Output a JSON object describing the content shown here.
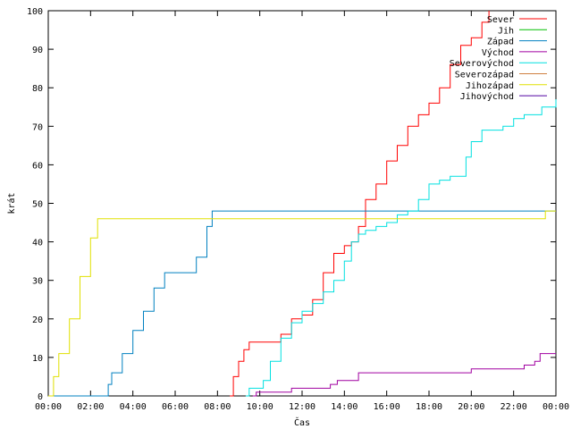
{
  "chart_data": {
    "type": "line",
    "xlabel": "Čas",
    "ylabel": "krát",
    "xlim": [
      "00:00",
      "24:00"
    ],
    "ylim": [
      0,
      100
    ],
    "x_ticks": [
      "00:00",
      "02:00",
      "04:00",
      "06:00",
      "08:00",
      "10:00",
      "12:00",
      "14:00",
      "16:00",
      "18:00",
      "20:00",
      "22:00",
      "00:00"
    ],
    "y_ticks": [
      0,
      10,
      20,
      30,
      40,
      50,
      60,
      70,
      80,
      90,
      100
    ],
    "grid": false,
    "legend_position": "top-right",
    "series": [
      {
        "name": "Sever",
        "color": "#ff0000",
        "points": [
          [
            "08:35",
            0
          ],
          [
            "08:45",
            5
          ],
          [
            "09:00",
            9
          ],
          [
            "09:15",
            12
          ],
          [
            "09:30",
            14
          ],
          [
            "10:00",
            14
          ],
          [
            "10:30",
            14
          ],
          [
            "11:00",
            16
          ],
          [
            "11:30",
            20
          ],
          [
            "12:00",
            21
          ],
          [
            "12:30",
            25
          ],
          [
            "13:00",
            32
          ],
          [
            "13:30",
            37
          ],
          [
            "14:00",
            39
          ],
          [
            "14:20",
            40
          ],
          [
            "14:40",
            44
          ],
          [
            "15:00",
            51
          ],
          [
            "15:30",
            55
          ],
          [
            "16:00",
            61
          ],
          [
            "16:30",
            65
          ],
          [
            "17:00",
            70
          ],
          [
            "17:30",
            73
          ],
          [
            "18:00",
            76
          ],
          [
            "18:30",
            80
          ],
          [
            "19:00",
            86
          ],
          [
            "19:30",
            91
          ],
          [
            "20:00",
            93
          ],
          [
            "20:30",
            97
          ],
          [
            "20:50",
            100
          ]
        ]
      },
      {
        "name": "Jih",
        "color": "#00c000",
        "points": []
      },
      {
        "name": "Západ",
        "color": "#0080c0",
        "points": [
          [
            "00:00",
            0
          ],
          [
            "02:40",
            0
          ],
          [
            "02:50",
            3
          ],
          [
            "03:00",
            6
          ],
          [
            "03:30",
            11
          ],
          [
            "04:00",
            17
          ],
          [
            "04:30",
            22
          ],
          [
            "05:00",
            28
          ],
          [
            "05:30",
            32
          ],
          [
            "06:00",
            32
          ],
          [
            "06:30",
            32
          ],
          [
            "07:00",
            36
          ],
          [
            "07:30",
            44
          ],
          [
            "07:45",
            48
          ],
          [
            "12:00",
            48
          ],
          [
            "16:00",
            48
          ],
          [
            "20:00",
            48
          ],
          [
            "24:00",
            48
          ]
        ]
      },
      {
        "name": "Východ",
        "color": "#a000a0",
        "points": [
          [
            "09:40",
            0
          ],
          [
            "09:50",
            1
          ],
          [
            "10:00",
            1
          ],
          [
            "11:00",
            1
          ],
          [
            "11:30",
            2
          ],
          [
            "12:30",
            2
          ],
          [
            "13:20",
            3
          ],
          [
            "13:40",
            4
          ],
          [
            "14:40",
            6
          ],
          [
            "15:30",
            6
          ],
          [
            "16:30",
            6
          ],
          [
            "17:30",
            6
          ],
          [
            "18:30",
            6
          ],
          [
            "19:30",
            6
          ],
          [
            "20:00",
            7
          ],
          [
            "21:30",
            7
          ],
          [
            "22:30",
            8
          ],
          [
            "23:00",
            9
          ],
          [
            "23:15",
            11
          ],
          [
            "24:00",
            11
          ]
        ]
      },
      {
        "name": "Severovýchod",
        "color": "#00e0e0",
        "points": [
          [
            "09:20",
            0
          ],
          [
            "09:30",
            2
          ],
          [
            "10:00",
            2
          ],
          [
            "10:10",
            4
          ],
          [
            "10:30",
            9
          ],
          [
            "11:00",
            15
          ],
          [
            "11:30",
            19
          ],
          [
            "12:00",
            22
          ],
          [
            "12:30",
            24
          ],
          [
            "13:00",
            27
          ],
          [
            "13:30",
            30
          ],
          [
            "14:00",
            35
          ],
          [
            "14:20",
            40
          ],
          [
            "14:40",
            42
          ],
          [
            "15:00",
            43
          ],
          [
            "15:30",
            44
          ],
          [
            "16:00",
            45
          ],
          [
            "16:30",
            47
          ],
          [
            "17:00",
            48
          ],
          [
            "17:30",
            51
          ],
          [
            "18:00",
            55
          ],
          [
            "18:30",
            56
          ],
          [
            "19:00",
            57
          ],
          [
            "19:30",
            57
          ],
          [
            "19:45",
            62
          ],
          [
            "20:00",
            66
          ],
          [
            "20:30",
            69
          ],
          [
            "21:00",
            69
          ],
          [
            "21:30",
            70
          ],
          [
            "22:00",
            72
          ],
          [
            "22:30",
            73
          ],
          [
            "23:00",
            73
          ],
          [
            "23:20",
            75
          ],
          [
            "24:00",
            77
          ]
        ]
      },
      {
        "name": "Severozápad",
        "color": "#d08040",
        "points": []
      },
      {
        "name": "Jihozápad",
        "color": "#e0e000",
        "points": [
          [
            "00:00",
            0
          ],
          [
            "00:15",
            5
          ],
          [
            "00:30",
            11
          ],
          [
            "01:00",
            20
          ],
          [
            "01:30",
            31
          ],
          [
            "02:00",
            41
          ],
          [
            "02:20",
            46
          ],
          [
            "04:00",
            46
          ],
          [
            "08:00",
            46
          ],
          [
            "12:00",
            46
          ],
          [
            "16:00",
            46
          ],
          [
            "20:00",
            46
          ],
          [
            "23:20",
            46
          ],
          [
            "23:30",
            48
          ],
          [
            "24:00",
            48
          ]
        ]
      },
      {
        "name": "Jihovýchod",
        "color": "#5000a0",
        "points": []
      }
    ]
  }
}
